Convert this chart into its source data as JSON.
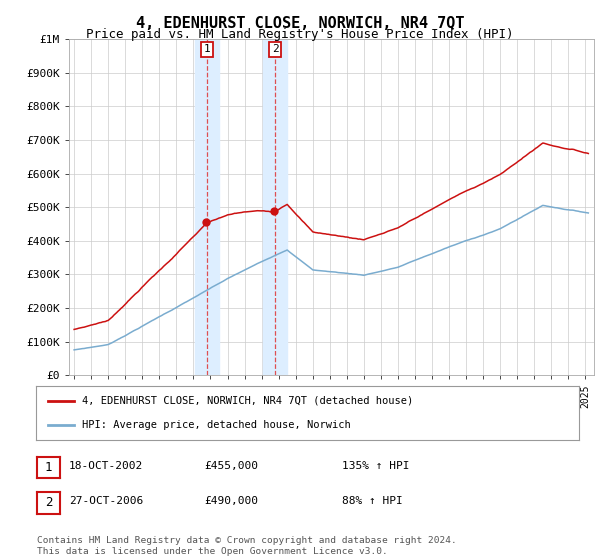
{
  "title": "4, EDENHURST CLOSE, NORWICH, NR4 7QT",
  "subtitle": "Price paid vs. HM Land Registry's House Price Index (HPI)",
  "ylabel_ticks": [
    "£0",
    "£100K",
    "£200K",
    "£300K",
    "£400K",
    "£500K",
    "£600K",
    "£700K",
    "£800K",
    "£900K",
    "£1M"
  ],
  "ytick_values": [
    0,
    100000,
    200000,
    300000,
    400000,
    500000,
    600000,
    700000,
    800000,
    900000,
    1000000
  ],
  "ylim": [
    0,
    1000000
  ],
  "hpi_color": "#7aaccf",
  "price_color": "#cc1111",
  "sale1_year": 2002.79,
  "sale1_price": 455000,
  "sale2_year": 2006.79,
  "sale2_price": 490000,
  "legend_line1": "4, EDENHURST CLOSE, NORWICH, NR4 7QT (detached house)",
  "legend_line2": "HPI: Average price, detached house, Norwich",
  "table_row1_num": "1",
  "table_row1_date": "18-OCT-2002",
  "table_row1_price": "£455,000",
  "table_row1_hpi": "135% ↑ HPI",
  "table_row2_num": "2",
  "table_row2_date": "27-OCT-2006",
  "table_row2_price": "£490,000",
  "table_row2_hpi": "88% ↑ HPI",
  "footnote": "Contains HM Land Registry data © Crown copyright and database right 2024.\nThis data is licensed under the Open Government Licence v3.0.",
  "title_fontsize": 11,
  "subtitle_fontsize": 9,
  "background_color": "#ffffff",
  "span1_color": "#ddeeff",
  "span2_color": "#ddeeff"
}
